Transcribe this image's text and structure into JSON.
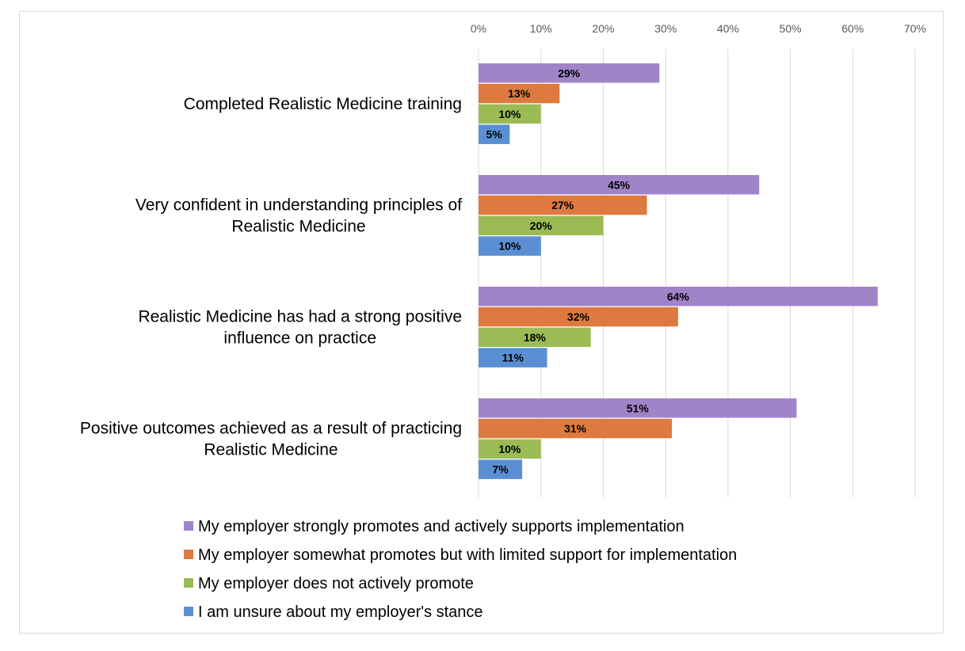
{
  "chart_data": {
    "type": "bar",
    "orientation": "horizontal",
    "categories": [
      [
        "Completed Realistic Medicine training"
      ],
      [
        "Very confident in understanding principles of",
        "Realistic Medicine"
      ],
      [
        "Realistic Medicine has had a strong positive",
        "influence on practice"
      ],
      [
        "Positive outcomes achieved as a result of practicing",
        "Realistic Medicine"
      ]
    ],
    "series": [
      {
        "name": "My employer strongly promotes and actively supports implementation",
        "color": "#a084c8",
        "values": [
          29,
          45,
          64,
          51
        ],
        "labels": [
          "29%",
          "45%",
          "64%",
          "51%"
        ]
      },
      {
        "name": "My employer somewhat promotes but with limited support for implementation",
        "color": "#dd7a40",
        "values": [
          13,
          27,
          32,
          31
        ],
        "labels": [
          "13%",
          "27%",
          "32%",
          "31%"
        ]
      },
      {
        "name": "My employer does not actively promote",
        "color": "#9bbb55",
        "values": [
          10,
          20,
          18,
          10
        ],
        "labels": [
          "10%",
          "20%",
          "18%",
          "10%"
        ]
      },
      {
        "name": "I am unsure about my employer's stance",
        "color": "#5b8fd3",
        "values": [
          5,
          10,
          11,
          7
        ],
        "labels": [
          "5%",
          "10%",
          "11%",
          "7%"
        ]
      }
    ],
    "xlim": [
      0,
      70
    ],
    "xticks": [
      "0%",
      "10%",
      "20%",
      "30%",
      "40%",
      "50%",
      "60%",
      "70%"
    ],
    "x_axis_position": "top",
    "grid": true,
    "legend_position": "bottom",
    "title": "",
    "xlabel": "",
    "ylabel": ""
  }
}
